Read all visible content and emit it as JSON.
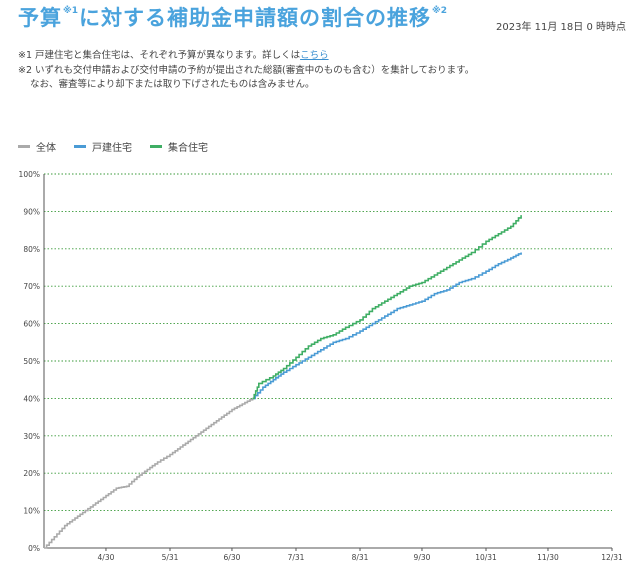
{
  "header": {
    "title_part1": "予算",
    "title_sup1": "※1",
    "title_part2": "に対する補助金申請額の割合の推移",
    "title_sup2": "※2",
    "timestamp": "2023年 11月 18日 0 時時点"
  },
  "notes": {
    "note1_text": "※1 戸建住宅と集合住宅は、それぞれ予算が異なります。詳しくは",
    "note1_link": "こちら",
    "note2_line1": "※2 いずれも交付申請および交付申請の予約が提出された総額(審査中のものも含む）を集計しております。",
    "note2_line2": "なお、審査等により却下または取り下げされたものは含みません。"
  },
  "colors": {
    "overall": "#aaaaaa",
    "detached": "#4a9bd5",
    "multi": "#3fae64",
    "grid": "#3a9a3a",
    "title": "#4aa3dd"
  },
  "chart_data": {
    "type": "line",
    "y_tick_labels": [
      "0%",
      "10%",
      "20%",
      "30%",
      "40%",
      "50%",
      "60%",
      "70%",
      "80%",
      "90%",
      "100%"
    ],
    "x_tick_labels": [
      "4/30",
      "5/31",
      "6/30",
      "7/31",
      "8/31",
      "9/30",
      "10/31",
      "11/30",
      "12/31"
    ],
    "ylim": [
      0,
      100
    ],
    "xlim": [
      "2023-03-31",
      "2023-12-31"
    ],
    "grid": "horizontal dotted",
    "legend_position": "top-left",
    "series": [
      {
        "name": "全体",
        "color": "#aaaaaa",
        "points": [
          [
            "2023-03-31",
            0
          ],
          [
            "2023-04-05",
            3
          ],
          [
            "2023-04-10",
            6
          ],
          [
            "2023-04-15",
            8
          ],
          [
            "2023-04-20",
            10
          ],
          [
            "2023-04-25",
            12
          ],
          [
            "2023-04-30",
            14
          ],
          [
            "2023-05-05",
            16
          ],
          [
            "2023-05-10",
            16.5
          ],
          [
            "2023-05-15",
            19
          ],
          [
            "2023-05-20",
            21
          ],
          [
            "2023-05-25",
            23
          ],
          [
            "2023-05-31",
            25
          ],
          [
            "2023-06-05",
            27
          ],
          [
            "2023-06-10",
            29
          ],
          [
            "2023-06-15",
            31
          ],
          [
            "2023-06-20",
            33
          ],
          [
            "2023-06-25",
            35
          ],
          [
            "2023-06-30",
            37
          ],
          [
            "2023-07-05",
            38.5
          ],
          [
            "2023-07-10",
            40
          ]
        ]
      },
      {
        "name": "戸建住宅",
        "color": "#4a9bd5",
        "points": [
          [
            "2023-07-10",
            40
          ],
          [
            "2023-07-15",
            43
          ],
          [
            "2023-07-20",
            45
          ],
          [
            "2023-07-25",
            47
          ],
          [
            "2023-07-31",
            49
          ],
          [
            "2023-08-06",
            51
          ],
          [
            "2023-08-12",
            53
          ],
          [
            "2023-08-18",
            55
          ],
          [
            "2023-08-24",
            56
          ],
          [
            "2023-08-31",
            58
          ],
          [
            "2023-09-06",
            60
          ],
          [
            "2023-09-12",
            62
          ],
          [
            "2023-09-18",
            64
          ],
          [
            "2023-09-24",
            65
          ],
          [
            "2023-09-30",
            66
          ],
          [
            "2023-10-06",
            68
          ],
          [
            "2023-10-12",
            69
          ],
          [
            "2023-10-18",
            71
          ],
          [
            "2023-10-24",
            72
          ],
          [
            "2023-10-31",
            74
          ],
          [
            "2023-11-06",
            76
          ],
          [
            "2023-11-12",
            77.5
          ],
          [
            "2023-11-17",
            79
          ]
        ]
      },
      {
        "name": "集合住宅",
        "color": "#3fae64",
        "points": [
          [
            "2023-07-10",
            40
          ],
          [
            "2023-07-13",
            44
          ],
          [
            "2023-07-20",
            46
          ],
          [
            "2023-07-25",
            48
          ],
          [
            "2023-07-31",
            51
          ],
          [
            "2023-08-06",
            54
          ],
          [
            "2023-08-12",
            56
          ],
          [
            "2023-08-18",
            57
          ],
          [
            "2023-08-24",
            59
          ],
          [
            "2023-08-31",
            61
          ],
          [
            "2023-09-06",
            64
          ],
          [
            "2023-09-12",
            66
          ],
          [
            "2023-09-18",
            68
          ],
          [
            "2023-09-24",
            70
          ],
          [
            "2023-09-30",
            71
          ],
          [
            "2023-10-06",
            73
          ],
          [
            "2023-10-12",
            75
          ],
          [
            "2023-10-18",
            77
          ],
          [
            "2023-10-24",
            79
          ],
          [
            "2023-10-31",
            82
          ],
          [
            "2023-11-06",
            84
          ],
          [
            "2023-11-12",
            86
          ],
          [
            "2023-11-17",
            89
          ]
        ]
      }
    ]
  }
}
